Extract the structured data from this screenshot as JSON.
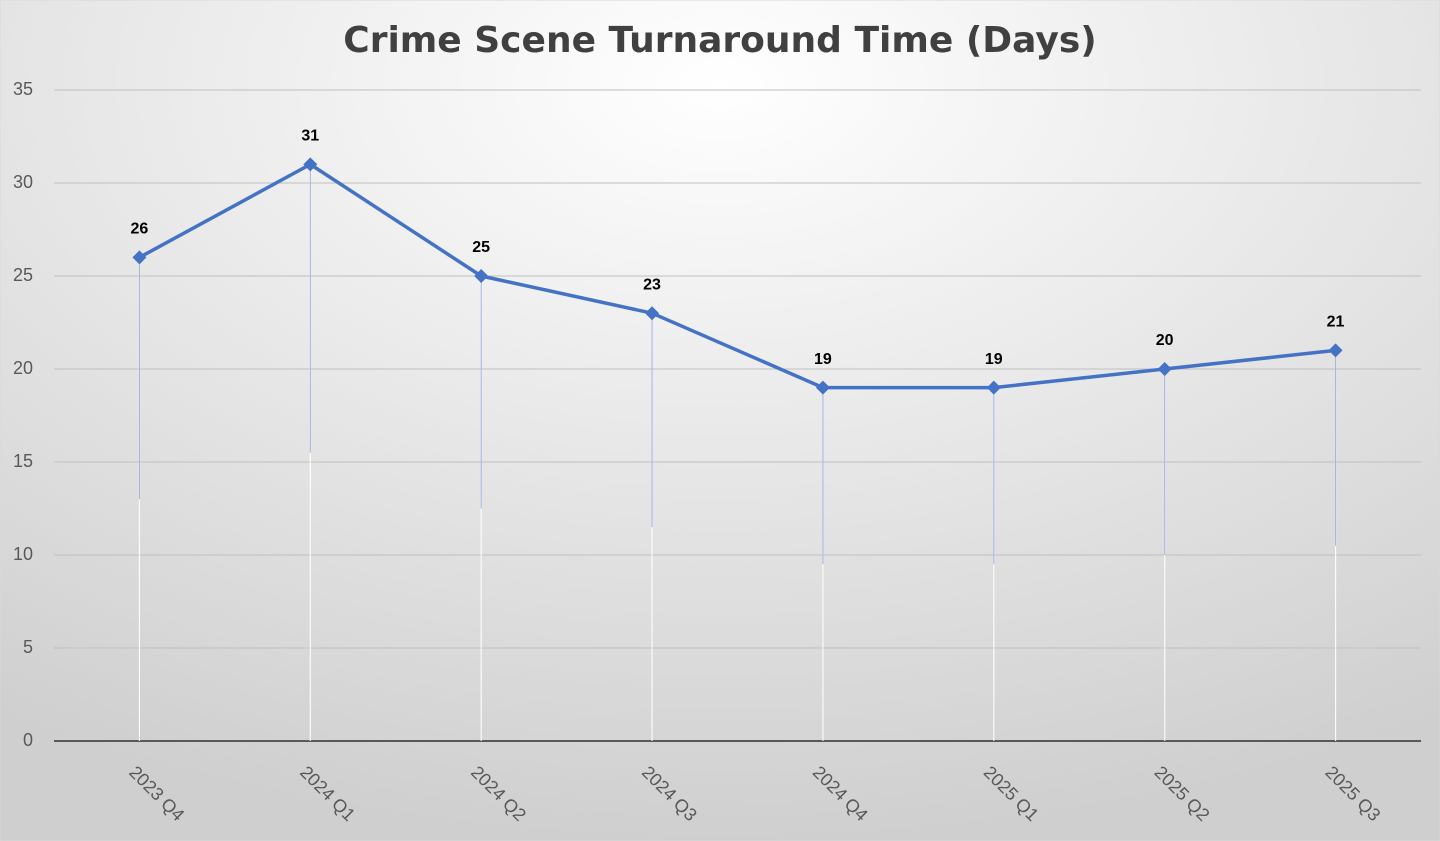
{
  "chart_data": {
    "type": "line",
    "title": "Crime Scene Turnaround Time (Days)",
    "categories": [
      "2023 Q4",
      "2024 Q1",
      "2024 Q2",
      "2024 Q3",
      "2024 Q4",
      "2025 Q1",
      "2025 Q2",
      "2025 Q3"
    ],
    "values": [
      26,
      31,
      25,
      23,
      19,
      19,
      20,
      21
    ],
    "color": "#4472c4",
    "ylim": [
      0,
      35
    ],
    "yticks": [
      0,
      5,
      10,
      15,
      20,
      25,
      30,
      35
    ],
    "grid": true,
    "drop_lines": true
  }
}
